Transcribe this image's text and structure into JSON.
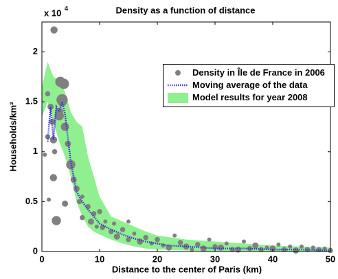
{
  "chart_data": {
    "type": "scatter",
    "title": "Density as a function of distance",
    "x_label": "Distance to the center of Paris (km)",
    "y_label": "Households/km²",
    "y_exponent": {
      "base": "x 10",
      "power": "4"
    },
    "xlim": [
      0,
      50
    ],
    "xticks": [
      0,
      10,
      20,
      30,
      40,
      50
    ],
    "ylim": [
      0,
      2.3
    ],
    "yticks": [
      0,
      0.5,
      1,
      1.5,
      2
    ],
    "legend_position": "upper right",
    "series": [
      {
        "name": "Density in Île de France in 2006",
        "type": "scatter",
        "color": "#808080",
        "x": [
          0.5,
          1,
          1,
          1.2,
          1.5,
          1.8,
          2,
          2,
          2.1,
          2.2,
          2.5,
          3,
          3,
          3.2,
          3.5,
          3.5,
          3.8,
          4,
          4,
          4.5,
          5,
          5.5,
          6,
          6.5,
          7,
          7,
          8,
          8.5,
          9,
          9.5,
          10,
          10.5,
          11,
          12,
          12.5,
          13,
          14,
          15,
          15,
          16,
          17,
          18,
          19,
          20,
          21,
          22,
          23,
          24,
          25,
          26,
          27,
          28,
          29,
          30,
          31,
          32,
          33,
          34,
          35,
          36,
          37,
          38,
          39,
          40,
          41,
          42,
          43,
          44,
          45,
          46,
          47,
          48,
          49,
          50
        ],
        "values": [
          0.97,
          1.15,
          1.58,
          0.52,
          1.45,
          1.3,
          1.12,
          0.74,
          2.22,
          1.0,
          0.31,
          1.4,
          1.36,
          1.7,
          1.52,
          1.5,
          1.68,
          1.25,
          0.48,
          1.08,
          0.87,
          0.72,
          0.63,
          0.5,
          0.55,
          0.34,
          0.45,
          0.3,
          0.38,
          0.25,
          0.4,
          0.24,
          0.3,
          0.2,
          0.28,
          0.15,
          0.22,
          0.3,
          0.12,
          0.18,
          0.1,
          0.14,
          0.08,
          0.12,
          0.06,
          0.04,
          0.16,
          0.09,
          0.05,
          0.02,
          0.07,
          0.03,
          0.12,
          0.05,
          0.04,
          0.08,
          0.02,
          0.02,
          0.1,
          0.03,
          0.06,
          0.02,
          0.04,
          0.03,
          0.07,
          0.02,
          0.05,
          0.01,
          0.05,
          0.02,
          0.04,
          0.02,
          0.03,
          0.01
        ],
        "sizes": [
          4,
          5,
          5,
          4,
          6,
          6,
          7,
          7,
          7,
          5,
          9,
          8,
          9,
          10,
          11,
          9,
          10,
          8,
          6,
          6,
          9,
          6,
          6,
          5,
          4,
          5,
          5,
          6,
          5,
          4,
          5,
          5,
          4,
          5,
          4,
          6,
          5,
          4,
          5,
          4,
          6,
          5,
          4,
          5,
          4,
          6,
          4,
          5,
          6,
          4,
          5,
          6,
          4,
          5,
          6,
          4,
          5,
          6,
          4,
          5,
          6,
          5,
          4,
          6,
          4,
          5,
          4,
          6,
          4,
          5,
          4,
          5,
          4,
          5
        ]
      },
      {
        "name": "Moving average of the data",
        "type": "line",
        "color": "#3a3ac8",
        "x": [
          1,
          1.5,
          2,
          2.5,
          3,
          3.5,
          4,
          5,
          6,
          7,
          8,
          9,
          10,
          12,
          14,
          16,
          18,
          20,
          22,
          25,
          28,
          30,
          35,
          40,
          45,
          50
        ],
        "values": [
          1.1,
          1.45,
          1.12,
          1.45,
          1.4,
          1.5,
          1.38,
          0.9,
          0.6,
          0.5,
          0.42,
          0.35,
          0.28,
          0.22,
          0.17,
          0.13,
          0.1,
          0.08,
          0.06,
          0.05,
          0.04,
          0.03,
          0.03,
          0.02,
          0.02,
          0.01
        ]
      },
      {
        "name": "Model results for year 2008",
        "type": "band",
        "color": "#90f090",
        "x": [
          0,
          1,
          2,
          3,
          4,
          5,
          6,
          7,
          8,
          9,
          10,
          12,
          14,
          16,
          18,
          20,
          25,
          30,
          35,
          40,
          45,
          50
        ],
        "upper": [
          1.65,
          1.9,
          1.75,
          1.72,
          1.6,
          1.4,
          1.3,
          1.25,
          0.95,
          0.75,
          0.55,
          0.35,
          0.3,
          0.25,
          0.2,
          0.16,
          0.12,
          0.1,
          0.08,
          0.06,
          0.05,
          0.04
        ],
        "lower": [
          1.35,
          1.5,
          1.3,
          1.1,
          0.95,
          0.75,
          0.5,
          0.35,
          0.25,
          0.2,
          0.17,
          0.12,
          0.08,
          0.05,
          0.03,
          0.02,
          0.01,
          0,
          0,
          0,
          0,
          0
        ]
      }
    ]
  }
}
